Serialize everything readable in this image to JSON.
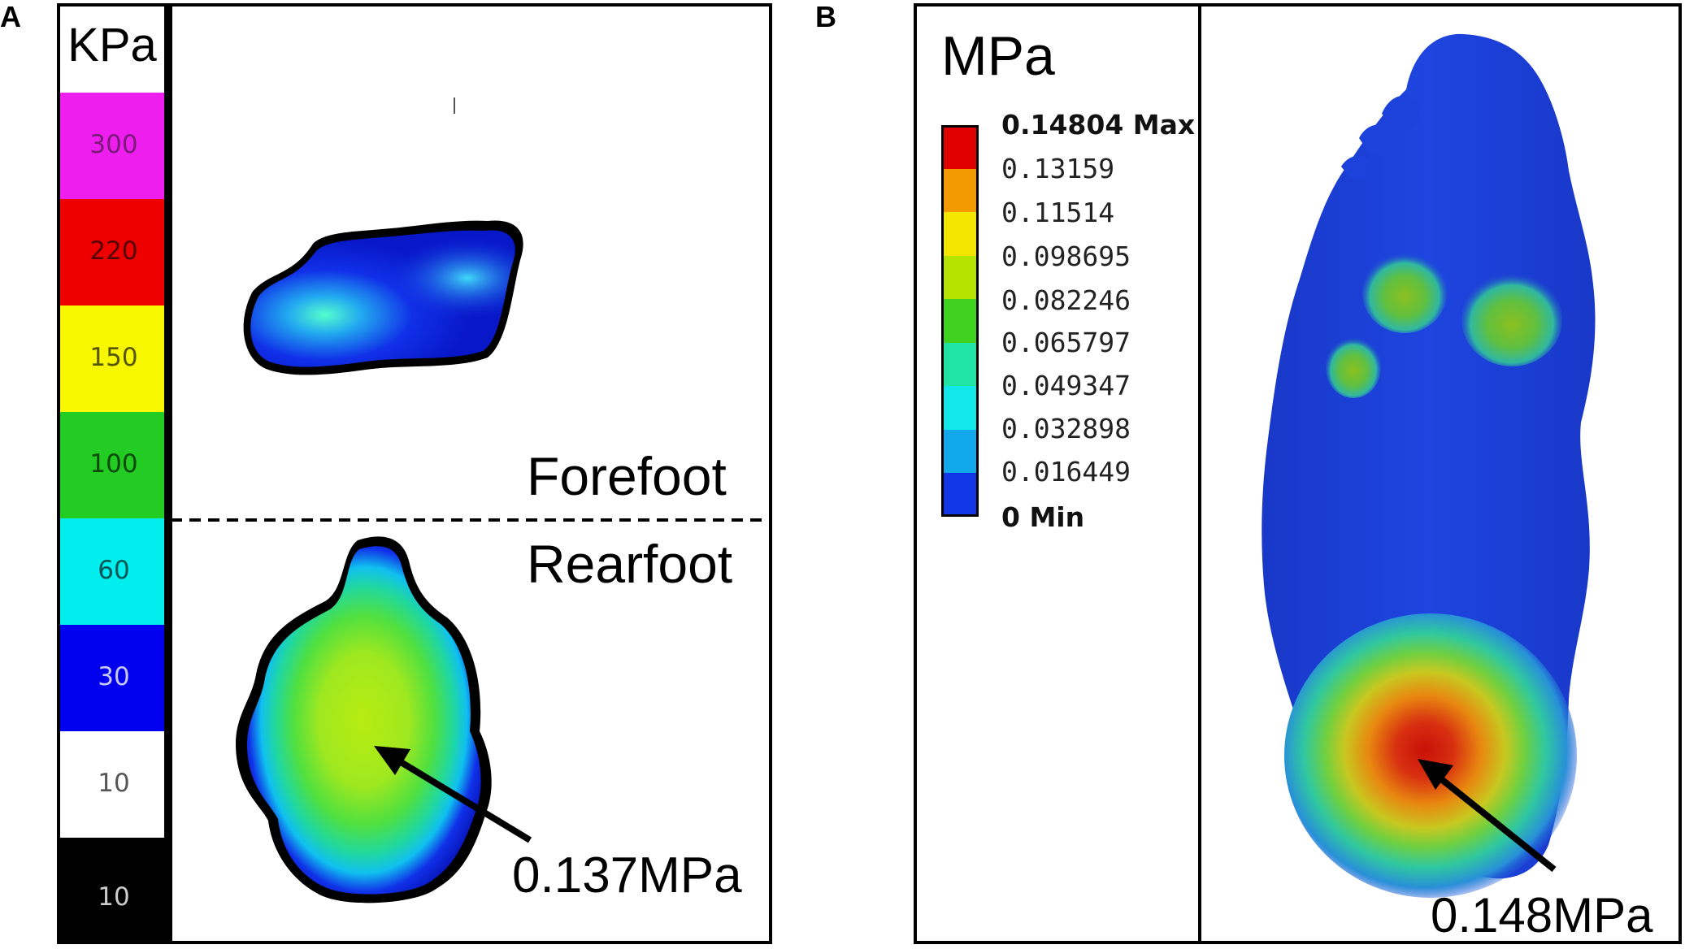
{
  "panel_a": {
    "letter": "A",
    "unit": "KPa",
    "legend": [
      {
        "label": "300",
        "color": "#ee1fee",
        "text_color": "#7a1a7a"
      },
      {
        "label": "220",
        "color": "#ee0000",
        "text_color": "#550000"
      },
      {
        "label": "150",
        "color": "#f7f700",
        "text_color": "#555500"
      },
      {
        "label": "100",
        "color": "#22cc22",
        "text_color": "#0b4a0b"
      },
      {
        "label": "60",
        "color": "#00eeee",
        "text_color": "#005555"
      },
      {
        "label": "30",
        "color": "#0000ee",
        "text_color": "#c8c8ff"
      },
      {
        "label": "10",
        "color": "#ffffff",
        "text_color": "#555555"
      },
      {
        "label": "10",
        "color": "#000000",
        "text_color": "#cccccc"
      }
    ],
    "forefoot_label": "Forefoot",
    "rearfoot_label": "Rearfoot",
    "peak_annotation": "0.137MPa"
  },
  "panel_b": {
    "letter": "B",
    "unit": "MPa",
    "legend": [
      {
        "label": "0.14804 Max",
        "color": "#e00000",
        "bold": true
      },
      {
        "label": "0.13159",
        "color": "#f29a00",
        "bold": false
      },
      {
        "label": "0.11514",
        "color": "#f5e600",
        "bold": false
      },
      {
        "label": "0.098695",
        "color": "#b4e400",
        "bold": false
      },
      {
        "label": "0.082246",
        "color": "#3fd21f",
        "bold": false
      },
      {
        "label": "0.065797",
        "color": "#1fe4a4",
        "bold": false
      },
      {
        "label": "0.049347",
        "color": "#12e8ea",
        "bold": false
      },
      {
        "label": "0.032898",
        "color": "#12a8ec",
        "bold": false
      },
      {
        "label": "0.016449",
        "color": "#1036e6",
        "bold": false
      },
      {
        "label": "0 Min",
        "color": "#1036e6",
        "bold": true
      }
    ],
    "peak_annotation": "0.148MPa"
  }
}
